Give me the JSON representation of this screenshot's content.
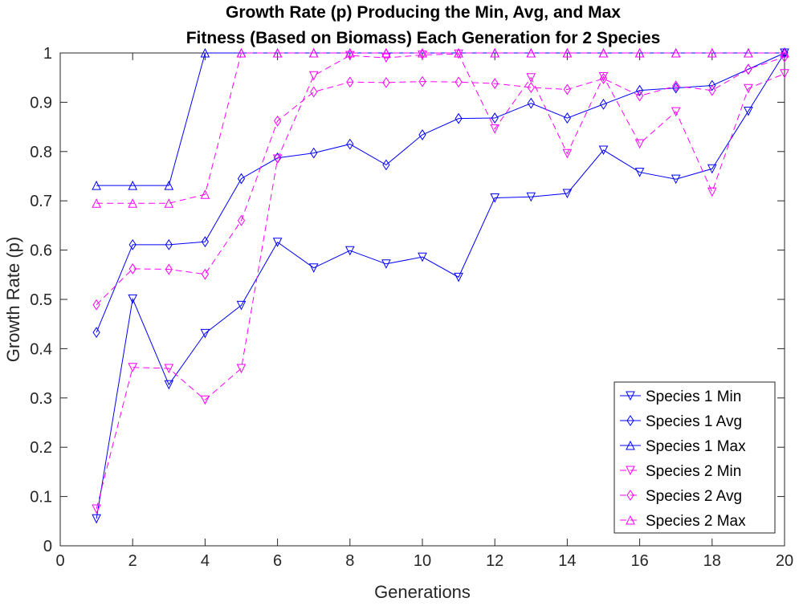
{
  "chart_data": {
    "type": "line",
    "title": [
      "Growth Rate (p) Producing the Min, Avg, and Max",
      "Fitness (Based on Biomass) Each Generation for 2 Species"
    ],
    "xlabel": "Generations",
    "ylabel": "Growth Rate (p)",
    "xlim": [
      0,
      20
    ],
    "ylim": [
      0,
      1
    ],
    "xticks": [
      0,
      2,
      4,
      6,
      8,
      10,
      12,
      14,
      16,
      18,
      20
    ],
    "yticks": [
      0,
      0.1,
      0.2,
      0.3,
      0.4,
      0.5,
      0.6,
      0.7,
      0.8,
      0.9,
      1
    ],
    "ytick_labels": [
      "0",
      "0.1",
      "0.2",
      "0.3",
      "0.4",
      "0.5",
      "0.6",
      "0.7",
      "0.8",
      "0.9",
      "1"
    ],
    "grid": false,
    "legend_position": "bottom-right",
    "x": [
      1,
      2,
      3,
      4,
      5,
      6,
      7,
      8,
      9,
      10,
      11,
      12,
      13,
      14,
      15,
      16,
      17,
      18,
      19,
      20
    ],
    "series": [
      {
        "name": "Species 1 Min",
        "color": "#0000ff",
        "dash": "solid",
        "marker": "triangle-down",
        "values": [
          0.055,
          0.501,
          0.327,
          0.431,
          0.488,
          0.616,
          0.564,
          0.599,
          0.572,
          0.586,
          0.545,
          0.706,
          0.708,
          0.715,
          0.803,
          0.758,
          0.744,
          0.765,
          0.882,
          1.0
        ]
      },
      {
        "name": "Species 1 Avg",
        "color": "#0000ff",
        "dash": "solid",
        "marker": "diamond",
        "values": [
          0.433,
          0.611,
          0.611,
          0.617,
          0.745,
          0.787,
          0.797,
          0.815,
          0.773,
          0.834,
          0.867,
          0.868,
          0.898,
          0.868,
          0.896,
          0.924,
          0.929,
          0.934,
          0.967,
          1.0
        ]
      },
      {
        "name": "Species 1 Max",
        "color": "#0000ff",
        "dash": "solid",
        "marker": "triangle-up",
        "values": [
          0.731,
          0.731,
          0.731,
          1.0,
          1.0,
          1.0,
          1.0,
          1.0,
          1.0,
          1.0,
          1.0,
          1.0,
          1.0,
          1.0,
          1.0,
          1.0,
          1.0,
          1.0,
          1.0,
          1.0
        ]
      },
      {
        "name": "Species 2 Min",
        "color": "#ff00ff",
        "dash": "dashed",
        "marker": "triangle-down",
        "values": [
          0.075,
          0.362,
          0.36,
          0.296,
          0.36,
          0.785,
          0.954,
          0.995,
          0.99,
          0.996,
          0.998,
          0.846,
          0.95,
          0.796,
          0.952,
          0.816,
          0.881,
          0.718,
          0.928,
          0.958
        ]
      },
      {
        "name": "Species 2 Avg",
        "color": "#ff00ff",
        "dash": "dashed",
        "marker": "diamond",
        "values": [
          0.489,
          0.562,
          0.561,
          0.551,
          0.66,
          0.862,
          0.921,
          0.941,
          0.94,
          0.942,
          0.941,
          0.938,
          0.93,
          0.926,
          0.948,
          0.913,
          0.933,
          0.924,
          0.967,
          0.992
        ]
      },
      {
        "name": "Species 2 Max",
        "color": "#ff00ff",
        "dash": "dashed",
        "marker": "triangle-up",
        "values": [
          0.695,
          0.695,
          0.695,
          0.713,
          1.0,
          1.0,
          1.0,
          1.0,
          1.0,
          1.0,
          1.0,
          1.0,
          1.0,
          1.0,
          1.0,
          1.0,
          1.0,
          1.0,
          1.0,
          1.0
        ]
      }
    ]
  }
}
